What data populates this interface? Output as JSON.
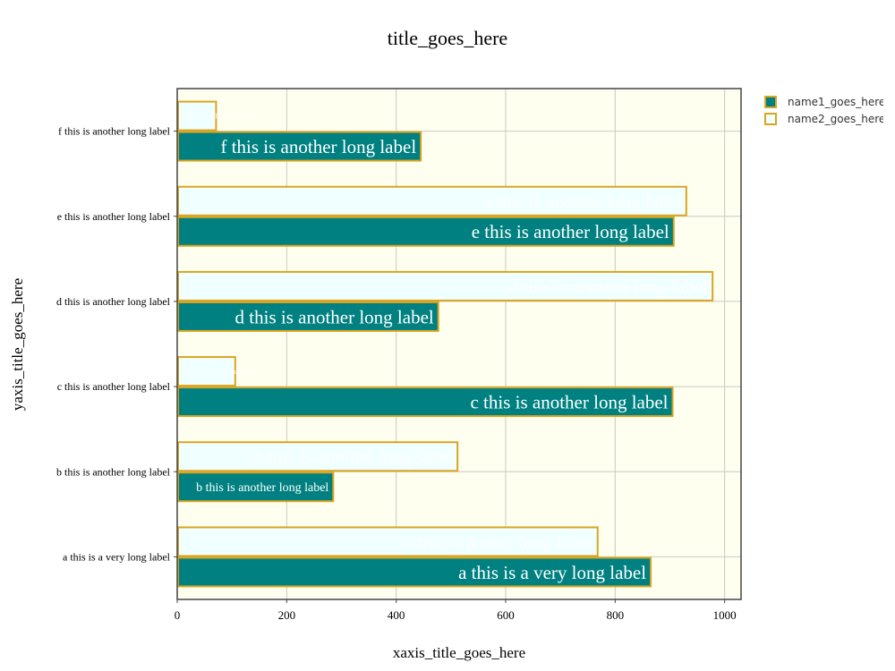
{
  "chart_data": {
    "type": "bar",
    "orientation": "horizontal",
    "title": "title_goes_here",
    "xlabel": "xaxis_title_goes_here",
    "ylabel": "yaxis_title_goes_here",
    "categories": [
      "a this is a very long label",
      "b this is another long label",
      "c this is another long label",
      "d this is another long label",
      "e this is another long label",
      "f this is another long label"
    ],
    "series": [
      {
        "name": "name1_goes_here",
        "values": [
          865,
          285,
          905,
          477,
          907,
          445
        ],
        "color": "#008080",
        "outline": "#DAA520",
        "text_color": "#ffffff"
      },
      {
        "name": "name2_goes_here",
        "values": [
          768,
          512,
          106,
          978,
          930,
          71
        ],
        "color": "#F0FFFF",
        "outline": "#DAA520",
        "text_color": "#ffffff"
      }
    ],
    "bar_text": [
      [
        "a this is a very long label",
        "b this is another long label",
        "c this is another long label",
        "d this is another long label",
        "e this is another long label",
        "f this is another long label"
      ],
      [
        "a this is a very long label",
        "b this is another long label",
        "c this is another long label",
        "d this is another long label",
        "e this is another long label",
        "f this is another long label"
      ]
    ],
    "xlim": [
      0,
      1030
    ],
    "xticks": [
      0,
      200,
      400,
      600,
      800,
      1000
    ],
    "xtick_labels": [
      "0",
      "200",
      "400",
      "600",
      "800",
      "1000"
    ],
    "plot_background": "#FFFFF0",
    "grid": true,
    "legend_position": "top-right"
  }
}
